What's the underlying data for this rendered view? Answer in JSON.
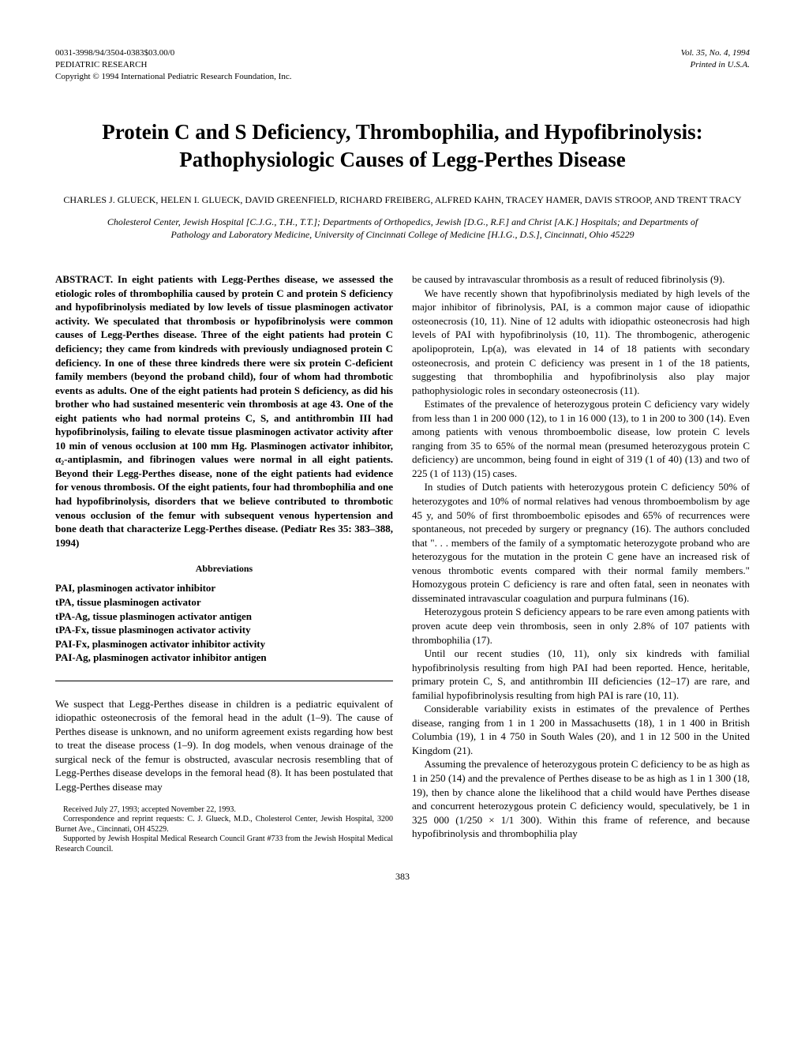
{
  "header": {
    "issn": "0031-3998/94/3504-0383$03.00/0",
    "journal": "PEDIATRIC RESEARCH",
    "copyright": "Copyright © 1994 International Pediatric Research Foundation, Inc.",
    "volume": "Vol. 35, No. 4, 1994",
    "printed": "Printed in U.S.A."
  },
  "title": "Protein C and S Deficiency, Thrombophilia, and Hypofibrinolysis: Pathophysiologic Causes of Legg-Perthes Disease",
  "authors": "CHARLES J. GLUECK, HELEN I. GLUECK, DAVID GREENFIELD, RICHARD FREIBERG, ALFRED KAHN, TRACEY HAMER, DAVIS STROOP, AND TRENT TRACY",
  "affiliations": "Cholesterol Center, Jewish Hospital [C.J.G., T.H., T.T.]; Departments of Orthopedics, Jewish [D.G., R.F.] and Christ [A.K.] Hospitals; and Departments of Pathology and Laboratory Medicine, University of Cincinnati College of Medicine [H.I.G., D.S.], Cincinnati, Ohio 45229",
  "abstract": "ABSTRACT. In eight patients with Legg-Perthes disease, we assessed the etiologic roles of thrombophilia caused by protein C and protein S deficiency and hypofibrinolysis mediated by low levels of tissue plasminogen activator activity. We speculated that thrombosis or hypofibrinolysis were common causes of Legg-Perthes disease. Three of the eight patients had protein C deficiency; they came from kindreds with previously undiagnosed protein C deficiency. In one of these three kindreds there were six protein C-deficient family members (beyond the proband child), four of whom had thrombotic events as adults. One of the eight patients had protein S deficiency, as did his brother who had sustained mesenteric vein thrombosis at age 43. One of the eight patients who had normal proteins C, S, and antithrombin III had hypofibrinolysis, failing to elevate tissue plasminogen activator activity after 10 min of venous occlusion at 100 mm Hg. Plasminogen activator inhibitor, α₂-antiplasmin, and fibrinogen values were normal in all eight patients. Beyond their Legg-Perthes disease, none of the eight patients had evidence for venous thrombosis. Of the eight patients, four had thrombophilia and one had hypofibrinolysis, disorders that we believe contributed to thrombotic venous occlusion of the femur with subsequent venous hypertension and bone death that characterize Legg-Perthes disease. (Pediatr Res 35: 383–388, 1994)",
  "abbrev_heading": "Abbreviations",
  "abbreviations": {
    "a1": "PAI, plasminogen activator inhibitor",
    "a2": "tPA, tissue plasminogen activator",
    "a3": "tPA-Ag, tissue plasminogen activator antigen",
    "a4": "tPA-Fx, tissue plasminogen activator activity",
    "a5": "PAI-Fx, plasminogen activator inhibitor activity",
    "a6": "PAI-Ag, plasminogen activator inhibitor antigen"
  },
  "left_body": "We suspect that Legg-Perthes disease in children is a pediatric equivalent of idiopathic osteonecrosis of the femoral head in the adult (1–9). The cause of Perthes disease is unknown, and no uniform agreement exists regarding how best to treat the disease process (1–9). In dog models, when venous drainage of the surgical neck of the femur is obstructed, avascular necrosis resembling that of Legg-Perthes disease develops in the femoral head (8). It has been postulated that Legg-Perthes disease may",
  "footnotes": {
    "f1": "Received July 27, 1993; accepted November 22, 1993.",
    "f2": "Correspondence and reprint requests: C. J. Glueck, M.D., Cholesterol Center, Jewish Hospital, 3200 Burnet Ave., Cincinnati, OH 45229.",
    "f3": "Supported by Jewish Hospital Medical Research Council Grant #733 from the Jewish Hospital Medical Research Council."
  },
  "right_paragraphs": {
    "p1": "be caused by intravascular thrombosis as a result of reduced fibrinolysis (9).",
    "p2": "We have recently shown that hypofibrinolysis mediated by high levels of the major inhibitor of fibrinolysis, PAI, is a common major cause of idiopathic osteonecrosis (10, 11). Nine of 12 adults with idiopathic osteonecrosis had high levels of PAI with hypofibrinolysis (10, 11). The thrombogenic, atherogenic apolipoprotein, Lp(a), was elevated in 14 of 18 patients with secondary osteonecrosis, and protein C deficiency was present in 1 of the 18 patients, suggesting that thrombophilia and hypofibrinolysis also play major pathophysiologic roles in secondary osteonecrosis (11).",
    "p3": "Estimates of the prevalence of heterozygous protein C deficiency vary widely from less than 1 in 200 000 (12), to 1 in 16 000 (13), to 1 in 200 to 300 (14). Even among patients with venous thromboembolic disease, low protein C levels ranging from 35 to 65% of the normal mean (presumed heterozygous protein C deficiency) are uncommon, being found in eight of 319 (1 of 40) (13) and two of 225 (1 of 113) (15) cases.",
    "p4": "In studies of Dutch patients with heterozygous protein C deficiency 50% of heterozygotes and 10% of normal relatives had venous thromboembolism by age 45 y, and 50% of first thromboembolic episodes and 65% of recurrences were spontaneous, not preceded by surgery or pregnancy (16). The authors concluded that \". . . members of the family of a symptomatic heterozygote proband who are heterozygous for the mutation in the protein C gene have an increased risk of venous thrombotic events compared with their normal family members.\" Homozygous protein C deficiency is rare and often fatal, seen in neonates with disseminated intravascular coagulation and purpura fulminans (16).",
    "p5": "Heterozygous protein S deficiency appears to be rare even among patients with proven acute deep vein thrombosis, seen in only 2.8% of 107 patients with thrombophilia (17).",
    "p6": "Until our recent studies (10, 11), only six kindreds with familial hypofibrinolysis resulting from high PAI had been reported. Hence, heritable, primary protein C, S, and antithrombin III deficiencies (12–17) are rare, and familial hypofibrinolysis resulting from high PAI is rare (10, 11).",
    "p7": "Considerable variability exists in estimates of the prevalence of Perthes disease, ranging from 1 in 1 200 in Massachusetts (18), 1 in 1 400 in British Columbia (19), 1 in 4 750 in South Wales (20), and 1 in 12 500 in the United Kingdom (21).",
    "p8": "Assuming the prevalence of heterozygous protein C deficiency to be as high as 1 in 250 (14) and the prevalence of Perthes disease to be as high as 1 in 1 300 (18, 19), then by chance alone the likelihood that a child would have Perthes disease and concurrent heterozygous protein C deficiency would, speculatively, be 1 in 325 000 (1/250 × 1/1 300). Within this frame of reference, and because hypofibrinolysis and thrombophilia play"
  },
  "page_number": "383"
}
